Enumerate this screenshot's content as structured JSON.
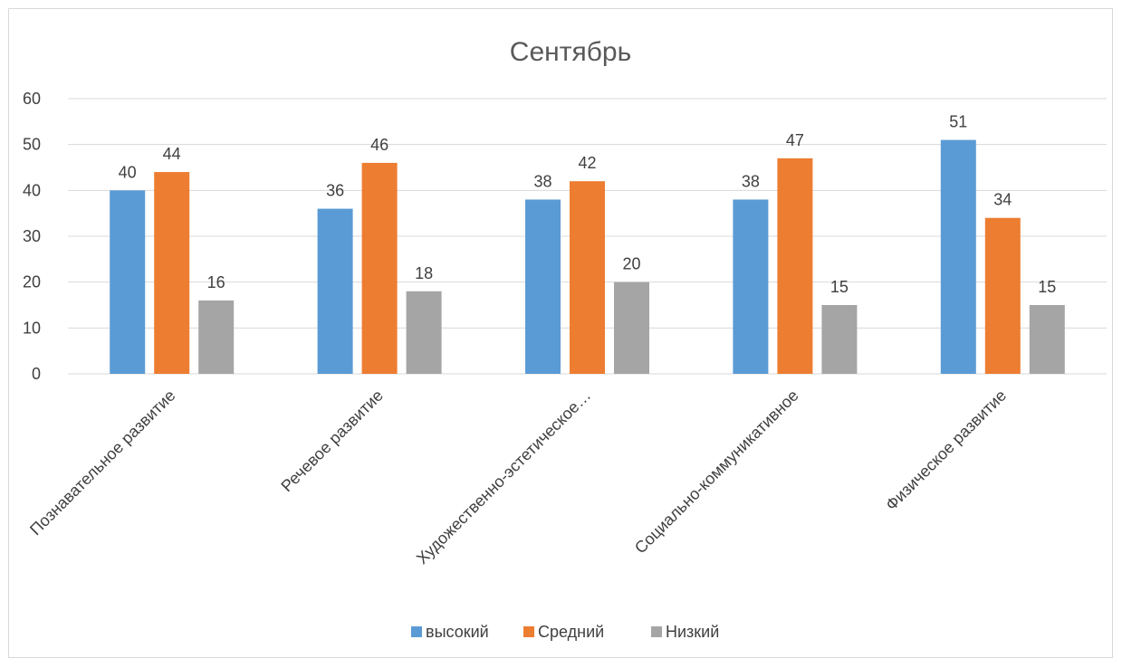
{
  "chart_data": {
    "type": "bar",
    "title": "Сентябрь",
    "xlabel": "",
    "ylabel": "",
    "ylim": [
      0,
      60
    ],
    "yticks": [
      0,
      10,
      20,
      30,
      40,
      50,
      60
    ],
    "grid": true,
    "legend_position": "bottom",
    "categories": [
      "Познавательное развитие",
      "Речевое развитие",
      "Художественно-эстетическое…",
      "Социально-коммуникативное",
      "Физическое развитие"
    ],
    "series": [
      {
        "name": "высокий",
        "color": "#5b9bd5",
        "values": [
          40,
          36,
          38,
          38,
          51
        ]
      },
      {
        "name": "Средний",
        "color": "#ed7d31",
        "values": [
          44,
          46,
          42,
          47,
          34
        ]
      },
      {
        "name": "Низкий",
        "color": "#a5a5a5",
        "values": [
          16,
          18,
          20,
          15,
          15
        ]
      }
    ]
  }
}
